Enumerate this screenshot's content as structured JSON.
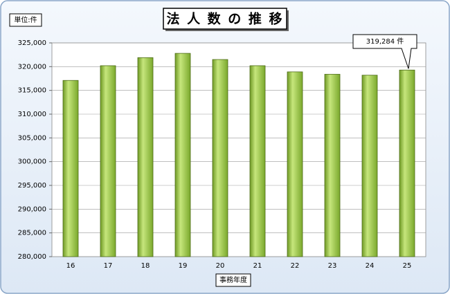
{
  "chart_data": {
    "type": "bar",
    "title": "法 人 数 の 推 移",
    "unit_label": "単位:件",
    "x_label": "事務年度",
    "categories": [
      "16",
      "17",
      "18",
      "19",
      "20",
      "21",
      "22",
      "23",
      "24",
      "25"
    ],
    "values": [
      317100,
      320200,
      321900,
      322800,
      321500,
      320200,
      318900,
      318400,
      318200,
      319284
    ],
    "value_labels": [
      null,
      null,
      null,
      null,
      null,
      null,
      null,
      null,
      null,
      "319,284 件"
    ],
    "color": "#92c83e",
    "ylim": [
      280000,
      325000
    ],
    "yticks": [
      {
        "value": 280000,
        "label": "280,000"
      },
      {
        "value": 285000,
        "label": "285,000"
      },
      {
        "value": 290000,
        "label": "290,000"
      },
      {
        "value": 295000,
        "label": "295,000"
      },
      {
        "value": 300000,
        "label": "300,000"
      },
      {
        "value": 305000,
        "label": "305,000"
      },
      {
        "value": 310000,
        "label": "310,000"
      },
      {
        "value": 315000,
        "label": "315,000"
      },
      {
        "value": 320000,
        "label": "320,000"
      },
      {
        "value": 325000,
        "label": "325,000"
      }
    ],
    "grid": true
  }
}
